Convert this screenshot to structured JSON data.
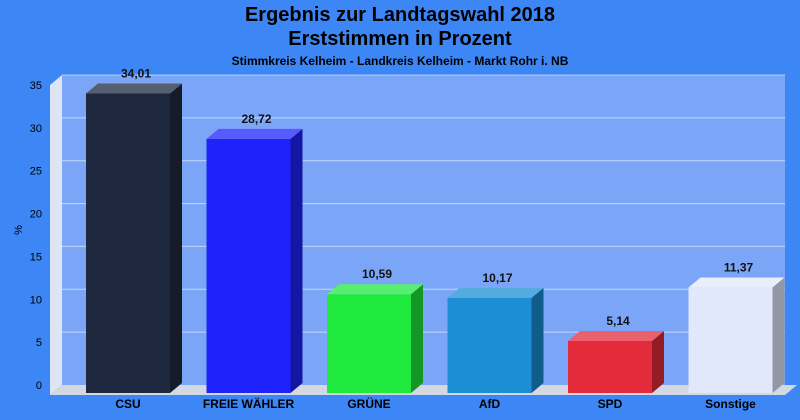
{
  "chart_data": {
    "type": "bar",
    "title": [
      "Ergebnis zur Landtagswahl 2018",
      "Erststimmen in Prozent"
    ],
    "subtitle": "Stimmkreis Kelheim - Landkreis Kelheim - Markt Rohr i. NB",
    "ylabel": "%",
    "xlabel": "",
    "ylim": [
      0,
      35
    ],
    "yticks": [
      0,
      5,
      10,
      15,
      20,
      25,
      30,
      35
    ],
    "grid": true,
    "categories": [
      "CSU",
      "FREIE WÄHLER",
      "GRÜNE",
      "AfD",
      "SPD",
      "Sonstige"
    ],
    "values": [
      34.01,
      28.72,
      10.59,
      10.17,
      5.14,
      11.37
    ],
    "value_labels": [
      "34,01",
      "28,72",
      "10,59",
      "10,17",
      "5,14",
      "11,37"
    ],
    "colors": [
      "#1e293f",
      "#1f23fb",
      "#20e93e",
      "#1c8ed6",
      "#e32b3c",
      "#e2e8fb"
    ]
  },
  "colors": {
    "background": "#3d86f5",
    "plot_area": "#7ba6f8",
    "floor": "#d3d8e3",
    "wall_side": "#dde4f2"
  }
}
